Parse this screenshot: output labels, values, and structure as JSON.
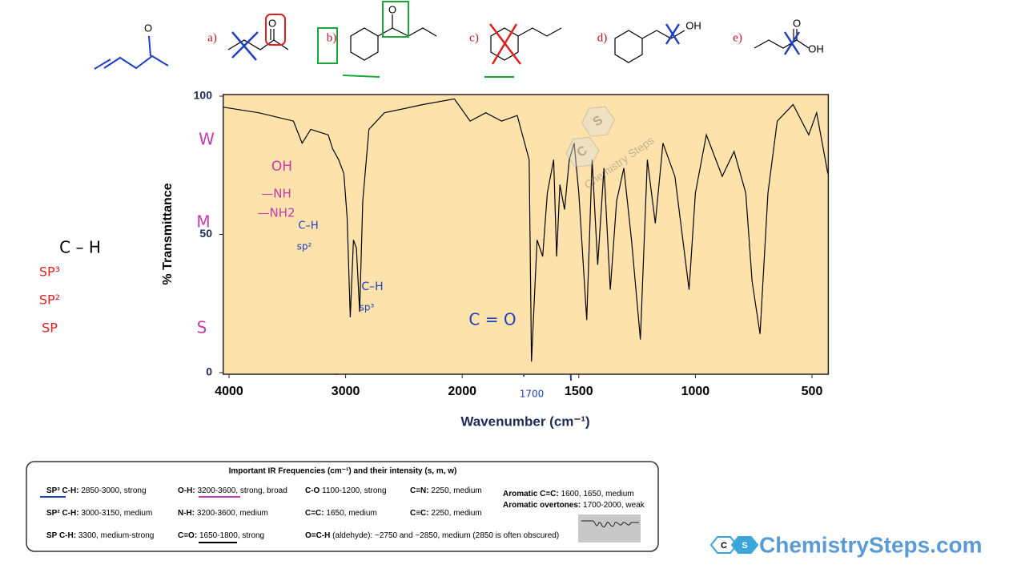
{
  "chart_data": {
    "type": "line",
    "x_label": "Wavenumber (cm⁻¹)",
    "y_label": "% Transmittance",
    "x": [
      4045,
      3746,
      3448,
      3373,
      3299,
      3149,
      3112,
      3060,
      3015,
      2987,
      2960,
      2933,
      2907,
      2880,
      2853,
      2800,
      2667,
      2333,
      2067,
      1966,
      1899,
      1831,
      1764,
      1713,
      1703,
      1679,
      1655,
      1635,
      1608,
      1595,
      1581,
      1561,
      1541,
      1520,
      1500,
      1466,
      1443,
      1419,
      1392,
      1365,
      1338,
      1307,
      1274,
      1236,
      1206,
      1172,
      1139,
      1088,
      1027,
      1000,
      953,
      885,
      834,
      784,
      757,
      723,
      689,
      649,
      581,
      514,
      480,
      432
    ],
    "values": [
      96,
      94,
      91,
      83,
      88,
      86,
      81,
      77,
      72,
      56,
      20,
      48,
      45,
      22,
      62,
      88,
      94,
      97,
      99,
      91,
      94,
      91,
      93,
      77,
      4,
      48,
      42,
      65,
      77,
      42,
      68,
      59,
      77,
      83,
      65,
      19,
      77,
      39,
      74,
      30,
      62,
      74,
      48,
      12,
      77,
      54,
      83,
      71,
      30,
      65,
      86,
      71,
      80,
      65,
      33,
      14,
      65,
      91,
      97,
      86,
      94,
      72
    ],
    "color": "#000000",
    "plot_color": "#fde3ab",
    "xlim": [
      4050,
      430
    ],
    "xticks": [
      4000,
      3000,
      2000,
      1500,
      1000,
      500
    ],
    "ylim": [
      0,
      100
    ],
    "yticks": [
      0,
      50,
      100
    ],
    "notes": [
      "W",
      "M",
      "S",
      "OH",
      "—NH",
      "—NH2",
      "C–H",
      "sp²",
      "C–H",
      "sp³",
      "C = O",
      "1700"
    ]
  },
  "molecules": {
    "labels": [
      "a)",
      "b)",
      "c)",
      "d)",
      "e)"
    ],
    "atoms": [
      "O",
      "O",
      "O",
      "OH",
      "O",
      "OH"
    ]
  },
  "side_notes": [
    "C – H",
    "SP³",
    "SP²",
    "SP"
  ],
  "reference_table": {
    "title": "Important IR Frequencies (cm⁻¹) and their intensity (s, m, w)",
    "rows": [
      [
        {
          "term": "SP³ C-H:",
          "desc": " 2850-3000, strong"
        },
        {
          "term": "O-H:",
          "desc": " 3200-3600, strong, broad"
        },
        {
          "term": "C-O",
          "desc": " 1100-1200, strong"
        },
        {
          "term": "C≡N:",
          "desc": " 2250, medium"
        },
        {
          "term": "Aromatic C=C:",
          "desc": " 1600, 1650, medium"
        }
      ],
      [
        {
          "term": "SP² C-H:",
          "desc": " 3000-3150, medium"
        },
        {
          "term": "N-H:",
          "desc": " 3200-3600, medium"
        },
        {
          "term": "C=C:",
          "desc": " 1650, medium"
        },
        {
          "term": "C≡C:",
          "desc": " 2250, medium"
        },
        {
          "term": "Aromatic overtones:",
          "desc": " 1700-2000, weak"
        }
      ],
      [
        {
          "term": "SP C-H:",
          "desc": "  3300, medium-strong"
        },
        {
          "term": "C=O:",
          "desc": " 1650-1800, strong"
        },
        {
          "term": "O=C-H",
          "desc": " (aldehyde): ~2750 and ~2850, medium (2850 is often obscured)"
        }
      ]
    ]
  },
  "watermark": {
    "text": "Chemistry Steps",
    "badge": [
      "C",
      "S"
    ]
  },
  "logo": {
    "text": "ChemistrySteps.com",
    "badge": [
      "C",
      "S"
    ]
  }
}
